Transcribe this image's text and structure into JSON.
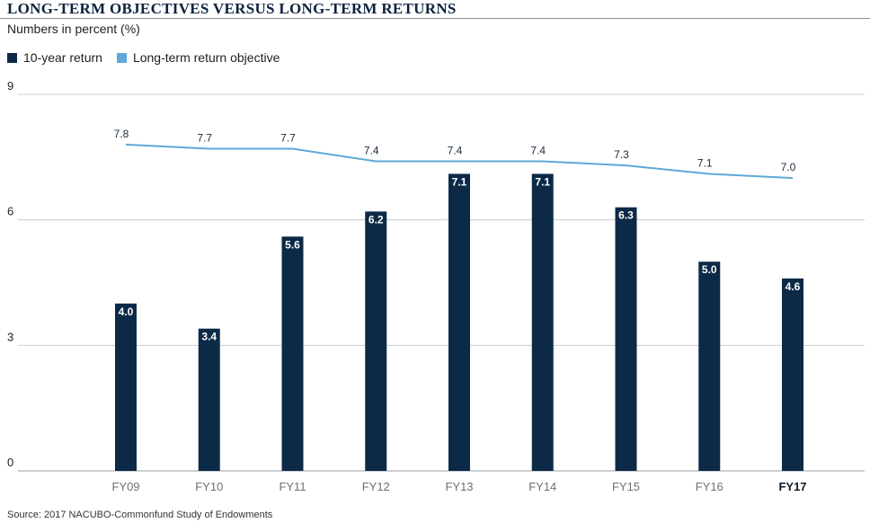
{
  "header": {
    "title": "LONG-TERM OBJECTIVES VERSUS LONG-TERM RETURNS",
    "subtitle": "Numbers in percent (%)"
  },
  "legend": {
    "bar_label": "10-year return",
    "line_label": "Long-term return objective"
  },
  "footer": {
    "source": "Source: 2017 NACUBO-Commonfund Study of Endowments"
  },
  "chart_data": {
    "type": "bar",
    "title": "LONG-TERM OBJECTIVES VERSUS LONG-TERM RETURNS",
    "ylabel": "Numbers in percent (%)",
    "categories": [
      "FY09",
      "FY10",
      "FY11",
      "FY12",
      "FY13",
      "FY14",
      "FY15",
      "FY16",
      "FY17"
    ],
    "series": [
      {
        "name": "10-year return",
        "type": "bar",
        "color": "#0c2a47",
        "values": [
          4.0,
          3.4,
          5.6,
          6.2,
          7.1,
          7.1,
          6.3,
          5.0,
          4.6
        ]
      },
      {
        "name": "Long-term return objective",
        "type": "line",
        "color": "#5ea8d8",
        "values": [
          7.8,
          7.7,
          7.7,
          7.4,
          7.4,
          7.4,
          7.3,
          7.1,
          7.0
        ]
      }
    ],
    "ylim": [
      0,
      9
    ],
    "yticks": [
      0,
      3,
      6,
      9
    ],
    "grid": true,
    "legend_position": "top-left",
    "highlight_category": "FY17"
  }
}
